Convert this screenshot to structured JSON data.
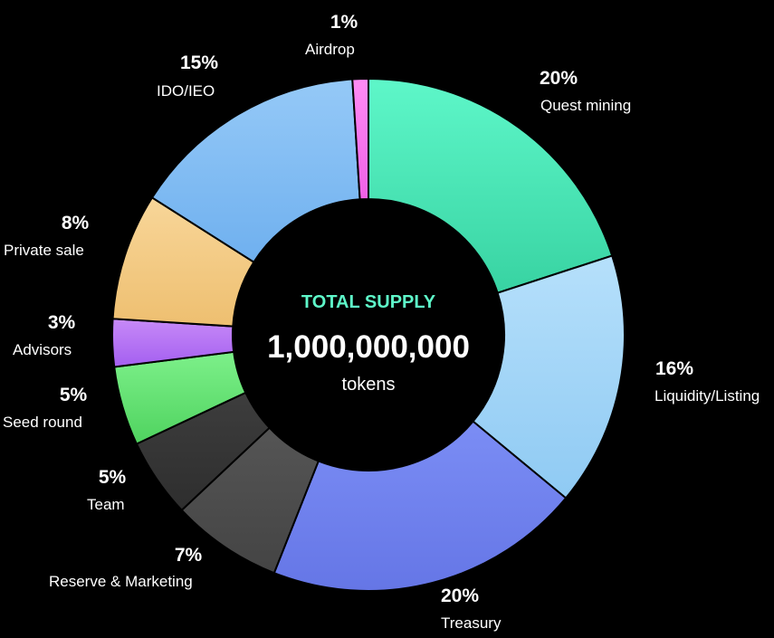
{
  "chart_data": {
    "type": "pie",
    "variant": "donut",
    "center": {
      "title": "TOTAL SUPPLY",
      "value": "1,000,000,000",
      "unit": "tokens"
    },
    "slices": [
      {
        "key": "quest-mining",
        "label": "Quest mining",
        "value": 20,
        "pct_label": "20%",
        "color_top": "#5ef7c9",
        "color_bottom": "#38d3a2"
      },
      {
        "key": "liquidity-listing",
        "label": "Liquidity/Listing",
        "value": 16,
        "pct_label": "16%",
        "color_top": "#b6e0fb",
        "color_bottom": "#8fcaf3"
      },
      {
        "key": "treasury",
        "label": "Treasury",
        "value": 20,
        "pct_label": "20%",
        "color_top": "#7b8df5",
        "color_bottom": "#6576e6"
      },
      {
        "key": "reserve-marketing",
        "label": "Reserve & Marketing",
        "value": 7,
        "pct_label": "7%",
        "color_top": "#555555",
        "color_bottom": "#444444"
      },
      {
        "key": "team",
        "label": "Team",
        "value": 5,
        "pct_label": "5%",
        "color_top": "#3d3d3d",
        "color_bottom": "#2e2e2e"
      },
      {
        "key": "seed-round",
        "label": "Seed round",
        "value": 5,
        "pct_label": "5%",
        "color_top": "#7df08a",
        "color_bottom": "#4fd35f"
      },
      {
        "key": "advisors",
        "label": "Advisors",
        "value": 3,
        "pct_label": "3%",
        "color_top": "#c78af7",
        "color_bottom": "#a45ff0"
      },
      {
        "key": "private-sale",
        "label": "Private sale",
        "value": 8,
        "pct_label": "8%",
        "color_top": "#f8d699",
        "color_bottom": "#eebf70"
      },
      {
        "key": "ido-ieo",
        "label": "IDO/IEO",
        "value": 15,
        "pct_label": "15%",
        "color_top": "#95c9f7",
        "color_bottom": "#6fb0ef"
      },
      {
        "key": "airdrop",
        "label": "Airdrop",
        "value": 1,
        "pct_label": "1%",
        "color_top": "#ff8cf5",
        "color_bottom": "#f060e6"
      }
    ],
    "start_angle_deg": 0,
    "direction": "clockwise",
    "legend": "none",
    "labels_position": "outside",
    "colors": {
      "background": "#000000",
      "center_fill": "#000000",
      "center_title": "#5ef7c9",
      "text": "#ffffff",
      "slice_border": "#000000"
    }
  }
}
